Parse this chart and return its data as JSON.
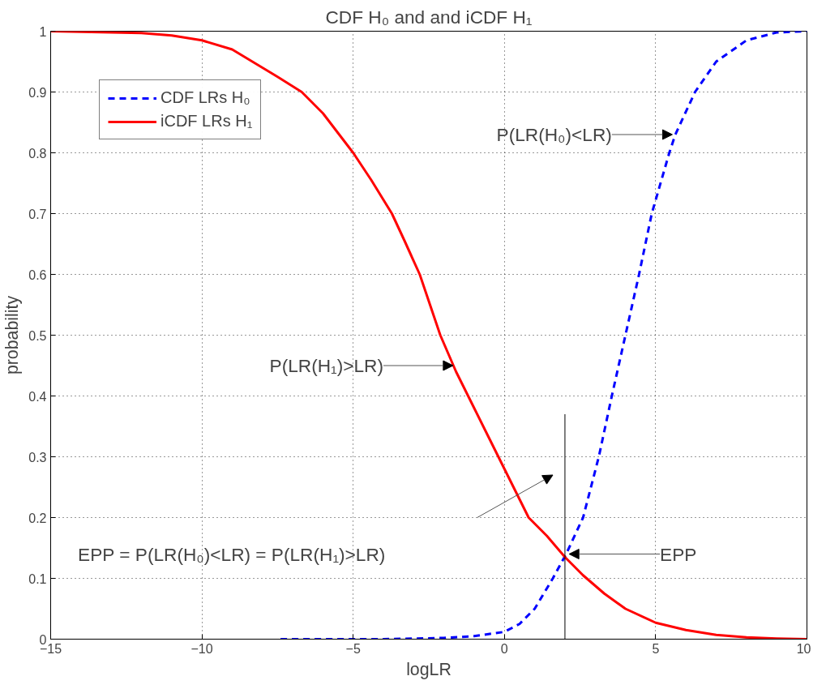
{
  "chart_data": {
    "type": "line",
    "title": "CDF H₀ and and iCDF H₁",
    "xlabel": "logLR",
    "ylabel": "probability",
    "xlim": [
      -15,
      10
    ],
    "xticks": [
      -15,
      -10,
      -5,
      0,
      5,
      10
    ],
    "ylim": [
      0,
      1
    ],
    "yticks": [
      0,
      0.1,
      0.2,
      0.3,
      0.4,
      0.5,
      0.6,
      0.7,
      0.8,
      0.9,
      1
    ],
    "grid": true,
    "legend": "top left",
    "series": [
      {
        "name": "CDF LRs H₀",
        "color": "#0000ff",
        "line_style": "dashed",
        "x": [
          -7.4,
          -4,
          -2,
          -1,
          0,
          0.5,
          1,
          1.6,
          2.04,
          2.6,
          3.12,
          3.55,
          4.0,
          4.45,
          4.87,
          5.45,
          5.65,
          6.3,
          7,
          8,
          9,
          10
        ],
        "values": [
          0,
          0,
          0.002,
          0.005,
          0.012,
          0.025,
          0.05,
          0.1,
          0.14,
          0.2,
          0.3,
          0.4,
          0.5,
          0.6,
          0.7,
          0.8,
          0.83,
          0.9,
          0.95,
          0.985,
          0.998,
          1
        ]
      },
      {
        "name": "iCDF LRs H₁",
        "color": "#ff0000",
        "line_style": "solid",
        "x": [
          -15,
          -14,
          -12,
          -11,
          -10,
          -9,
          -8,
          -7.5,
          -6.7,
          -6,
          -5,
          -4.4,
          -3.72,
          -3.3,
          -2.8,
          -2.12,
          -1.6,
          -1,
          -0.5,
          0,
          0.4,
          0.8,
          1.4,
          2,
          2.6,
          3.3,
          4,
          5,
          6,
          7,
          8,
          9,
          10
        ],
        "values": [
          1,
          0.999,
          0.997,
          0.993,
          0.985,
          0.97,
          0.94,
          0.925,
          0.9,
          0.865,
          0.8,
          0.755,
          0.7,
          0.655,
          0.6,
          0.5,
          0.44,
          0.38,
          0.33,
          0.28,
          0.24,
          0.2,
          0.17,
          0.135,
          0.105,
          0.075,
          0.05,
          0.027,
          0.015,
          0.007,
          0.003,
          0.001,
          0
        ]
      },
      {
        "color": "#000000",
        "line_style": "solid",
        "x": [
          2,
          2
        ],
        "values": [
          0,
          0.37
        ]
      }
    ],
    "annotations": [
      {
        "text": "P(LR(H₀)<LR)",
        "x": 5.65,
        "y": 0.83
      },
      {
        "text": "P(LR(H₁)>LR)",
        "x": -1.6,
        "y": 0.44
      },
      {
        "text": "EPP",
        "x": 2.04,
        "y": 0.14
      },
      "EPP = P(LR(H₀)<LR) = P(LR(H₁)>LR)"
    ]
  }
}
